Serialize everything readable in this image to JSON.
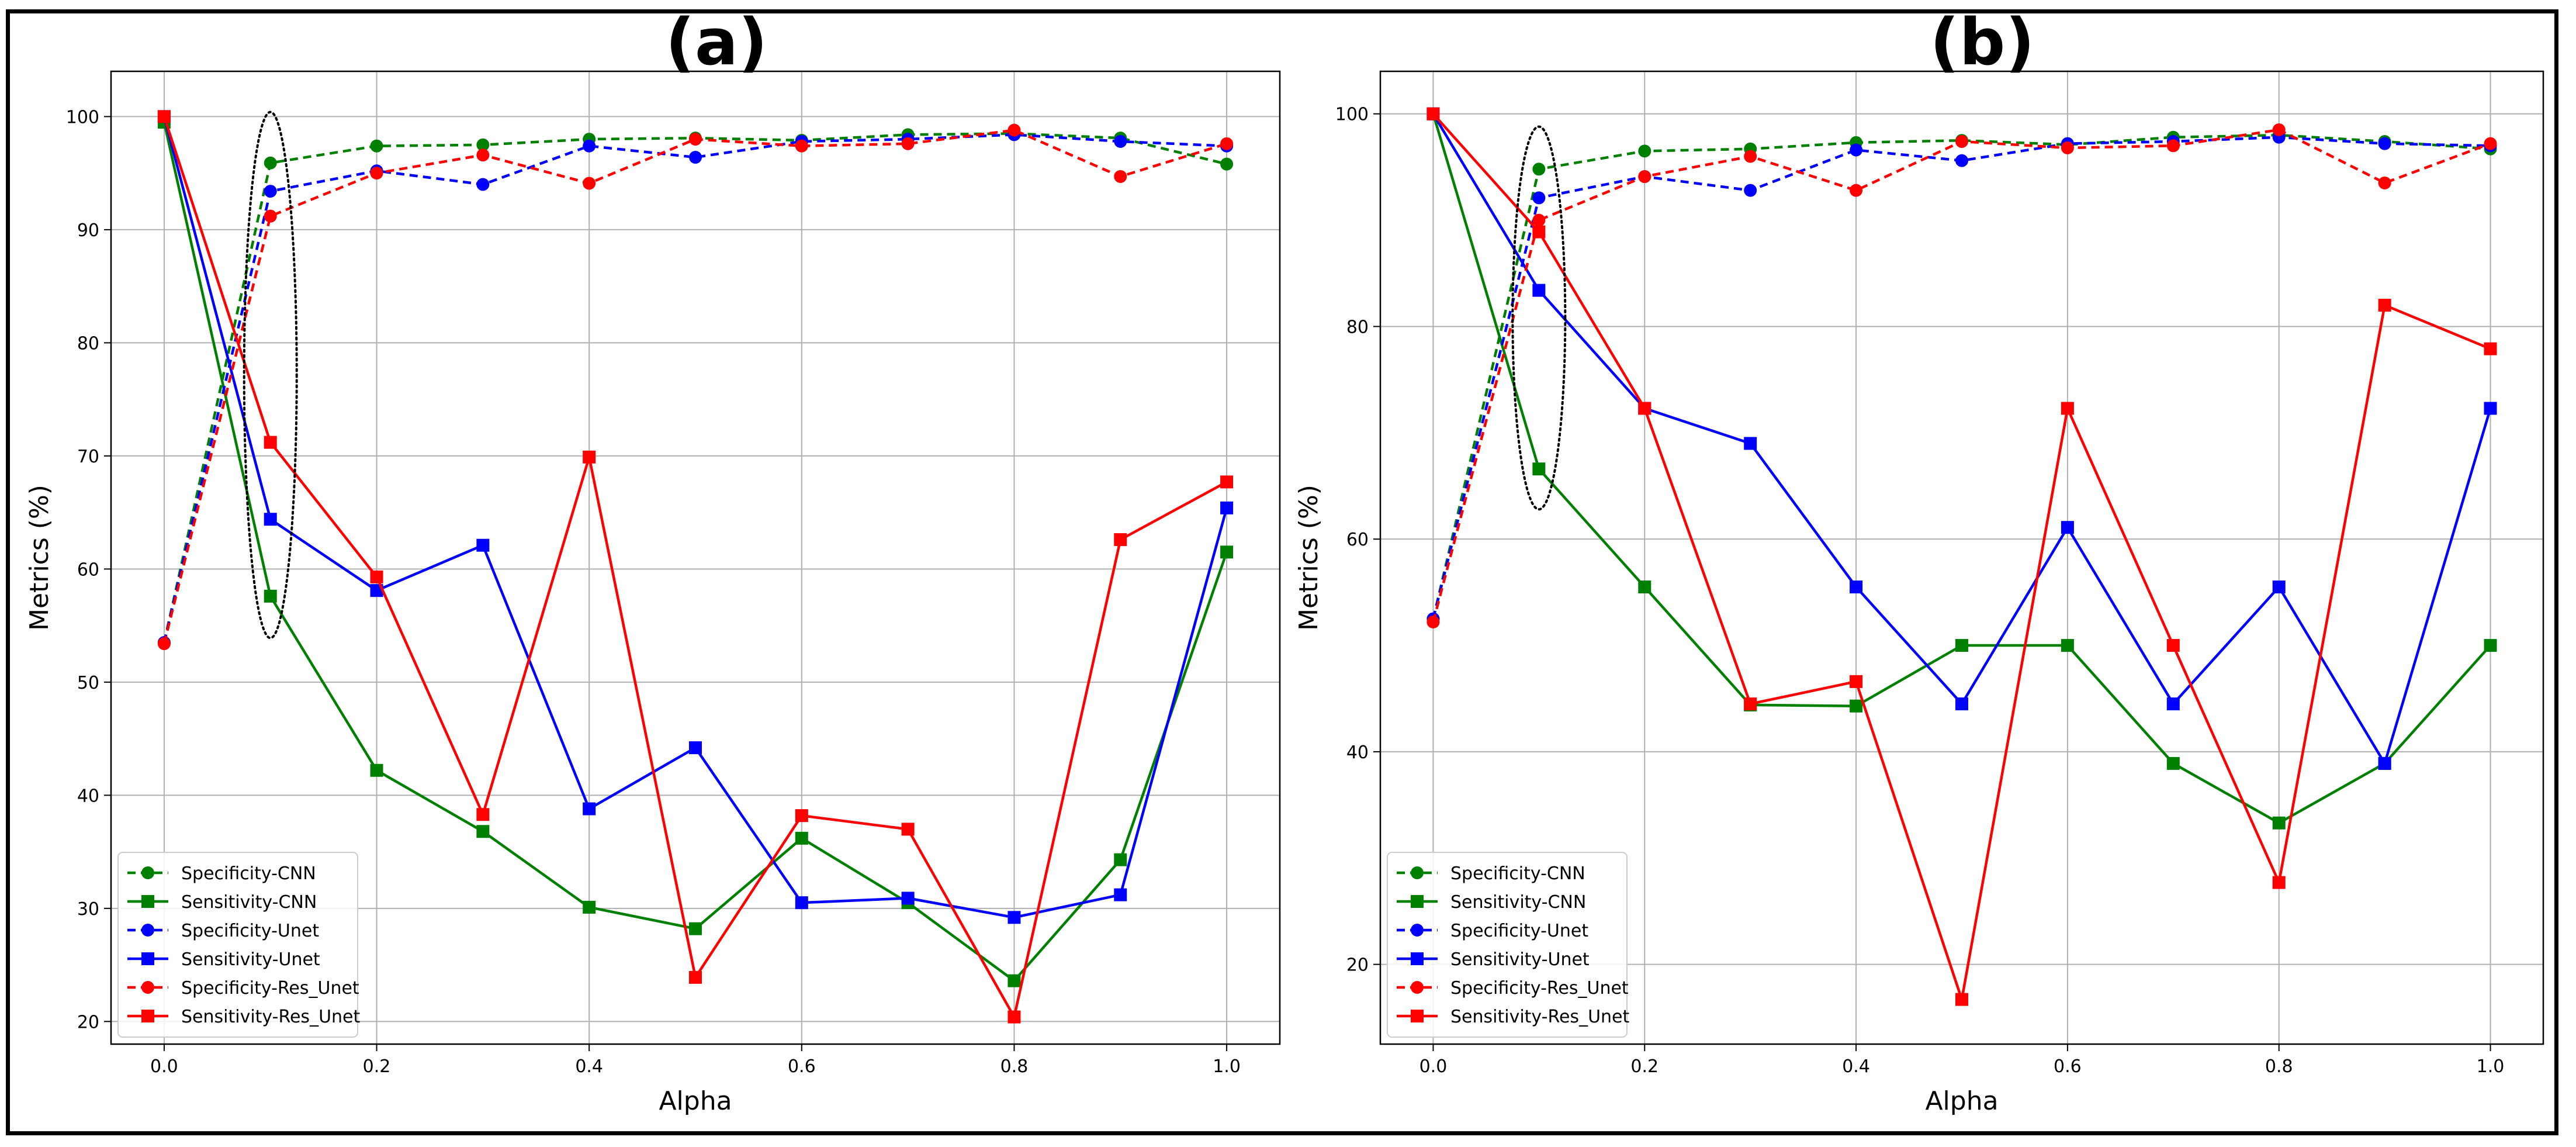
{
  "chart_data": [
    {
      "type": "line",
      "title": "(a)",
      "xlabel": "Alpha",
      "ylabel": "Metrics (%)",
      "xlim": [
        -0.05,
        1.05
      ],
      "ylim": [
        18,
        104
      ],
      "xticks": [
        "0.0",
        "0.2",
        "0.4",
        "0.6",
        "0.8",
        "1.0"
      ],
      "yticks": [
        "20",
        "30",
        "40",
        "50",
        "60",
        "70",
        "80",
        "90",
        "100"
      ],
      "grid": true,
      "legend_position": "bottom-left",
      "x": [
        0.0,
        0.1,
        0.2,
        0.3,
        0.4,
        0.5,
        0.6,
        0.7,
        0.8,
        0.9,
        1.0
      ],
      "series": [
        {
          "name": "Specificity-CNN",
          "color": "#008000",
          "dash": "dashed",
          "marker": "circle",
          "values": [
            53.5,
            95.9,
            97.4,
            97.5,
            98.0,
            98.1,
            97.9,
            98.4,
            98.5,
            98.1,
            95.8
          ]
        },
        {
          "name": "Sensitivity-CNN",
          "color": "#008000",
          "dash": "solid",
          "marker": "square",
          "values": [
            99.5,
            57.6,
            42.2,
            36.8,
            30.1,
            28.2,
            36.2,
            30.5,
            23.6,
            34.3,
            61.5
          ]
        },
        {
          "name": "Specificity-Unet",
          "color": "#0000ff",
          "dash": "dashed",
          "marker": "circle",
          "values": [
            53.5,
            93.4,
            95.2,
            94.0,
            97.4,
            96.4,
            97.8,
            98.0,
            98.4,
            97.8,
            97.4
          ]
        },
        {
          "name": "Sensitivity-Unet",
          "color": "#0000ff",
          "dash": "solid",
          "marker": "square",
          "values": [
            100.0,
            64.4,
            58.1,
            62.1,
            38.8,
            44.2,
            30.5,
            30.9,
            29.2,
            31.2,
            65.4
          ]
        },
        {
          "name": "Specificity-Res_Unet",
          "color": "#ff0000",
          "dash": "dashed",
          "marker": "circle",
          "values": [
            53.4,
            91.2,
            95.0,
            96.6,
            94.1,
            98.0,
            97.4,
            97.6,
            98.8,
            94.7,
            97.6
          ]
        },
        {
          "name": "Sensitivity-Res_Unet",
          "color": "#ff0000",
          "dash": "solid",
          "marker": "square",
          "values": [
            100.0,
            71.2,
            59.3,
            38.3,
            69.9,
            23.9,
            38.2,
            37.0,
            20.4,
            62.6,
            67.7
          ]
        }
      ],
      "annotation": {
        "type": "dotted-ellipse",
        "x": 0.1,
        "y_range": [
          53.9,
          100.4
        ]
      }
    },
    {
      "type": "line",
      "title": "(b)",
      "xlabel": "Alpha",
      "ylabel": "Metrics (%)",
      "xlim": [
        -0.05,
        1.05
      ],
      "ylim": [
        12.5,
        104
      ],
      "xticks": [
        "0.0",
        "0.2",
        "0.4",
        "0.6",
        "0.8",
        "1.0"
      ],
      "yticks": [
        "20",
        "40",
        "60",
        "80",
        "100"
      ],
      "grid": true,
      "legend_position": "bottom-left",
      "x": [
        0.0,
        0.1,
        0.2,
        0.3,
        0.4,
        0.5,
        0.6,
        0.7,
        0.8,
        0.9,
        1.0
      ],
      "series": [
        {
          "name": "Specificity-CNN",
          "color": "#008000",
          "dash": "dashed",
          "marker": "circle",
          "values": [
            52.5,
            94.8,
            96.5,
            96.7,
            97.3,
            97.5,
            97.1,
            97.8,
            98.0,
            97.4,
            96.7
          ]
        },
        {
          "name": "Sensitivity-CNN",
          "color": "#008000",
          "dash": "solid",
          "marker": "square",
          "values": [
            100.0,
            66.6,
            55.5,
            44.4,
            44.3,
            50.0,
            50.0,
            38.9,
            33.3,
            38.9,
            50.0
          ]
        },
        {
          "name": "Specificity-Unet",
          "color": "#0000ff",
          "dash": "dashed",
          "marker": "circle",
          "values": [
            52.5,
            92.1,
            94.1,
            92.8,
            96.6,
            95.6,
            97.2,
            97.4,
            97.8,
            97.2,
            97.0
          ]
        },
        {
          "name": "Sensitivity-Unet",
          "color": "#0000ff",
          "dash": "solid",
          "marker": "square",
          "values": [
            100.0,
            83.4,
            72.3,
            69.0,
            55.5,
            44.5,
            61.1,
            44.5,
            55.5,
            38.9,
            72.3
          ]
        },
        {
          "name": "Specificity-Res_Unet",
          "color": "#ff0000",
          "dash": "dashed",
          "marker": "circle",
          "values": [
            52.2,
            90.0,
            94.1,
            96.0,
            92.8,
            97.4,
            96.8,
            97.0,
            98.5,
            93.5,
            97.2
          ]
        },
        {
          "name": "Sensitivity-Res_Unet",
          "color": "#ff0000",
          "dash": "solid",
          "marker": "square",
          "values": [
            100.0,
            88.9,
            72.3,
            44.5,
            46.6,
            16.7,
            72.3,
            50.0,
            27.7,
            82.0,
            77.9
          ]
        }
      ],
      "annotation": {
        "type": "dotted-ellipse",
        "x": 0.1,
        "y_range": [
          62.8,
          98.8
        ]
      }
    }
  ]
}
